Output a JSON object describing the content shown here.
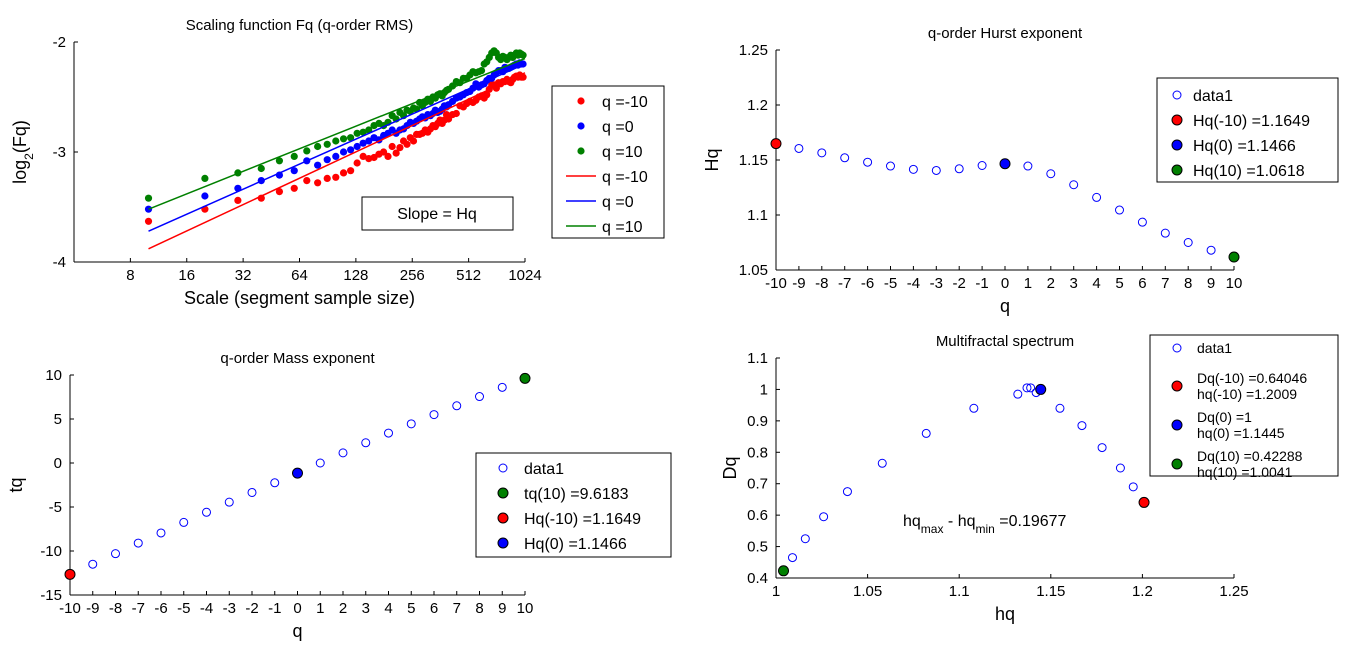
{
  "chart_data": [
    {
      "id": "scaling",
      "type": "scatter",
      "title": "Scaling function Fq (q-order RMS)",
      "xlabel": "Scale (segment sample size)",
      "ylabel": "log2(Fq)",
      "xscale": "log2",
      "xlim": [
        4,
        1024
      ],
      "ylim": [
        -4,
        -2
      ],
      "xticks": [
        8,
        16,
        32,
        64,
        128,
        256,
        512,
        1024
      ],
      "yticks": [
        -4,
        -3,
        -2
      ],
      "legend_position": "east-outside",
      "annotation": "Slope = Hq",
      "colors": {
        "q_neg10": "#ff0000",
        "q_0": "#0000ff",
        "q_10": "#008000"
      },
      "series": [
        {
          "name": "q =-10",
          "kind": "markers",
          "color": "#ff0000",
          "x": [
            10,
            20,
            30,
            40,
            50,
            60,
            70,
            80,
            90,
            100,
            110,
            120,
            130,
            140,
            150,
            160,
            170,
            180,
            190,
            200,
            210,
            220,
            230,
            240,
            250,
            260,
            270,
            280,
            290,
            300,
            310,
            320,
            330,
            340,
            350,
            360,
            370,
            380,
            390,
            400,
            420,
            440,
            460,
            480,
            500,
            520,
            540,
            560,
            580,
            600,
            620,
            640,
            660,
            680,
            700,
            720,
            740,
            760,
            780,
            800,
            820,
            840,
            860,
            880,
            900,
            920,
            940,
            960,
            980,
            1000
          ],
          "y": [
            -3.63,
            -3.52,
            -3.44,
            -3.42,
            -3.36,
            -3.33,
            -3.26,
            -3.28,
            -3.24,
            -3.23,
            -3.19,
            -3.17,
            -3.1,
            -3.04,
            -3.06,
            -3.05,
            -3.02,
            -3.0,
            -3.04,
            -2.95,
            -3.01,
            -2.96,
            -2.9,
            -2.93,
            -2.87,
            -2.9,
            -2.84,
            -2.84,
            -2.83,
            -2.8,
            -2.82,
            -2.79,
            -2.76,
            -2.77,
            -2.74,
            -2.71,
            -2.74,
            -2.71,
            -2.66,
            -2.7,
            -2.66,
            -2.65,
            -2.58,
            -2.59,
            -2.56,
            -2.54,
            -2.55,
            -2.53,
            -2.5,
            -2.49,
            -2.51,
            -2.48,
            -2.43,
            -2.39,
            -2.39,
            -2.42,
            -2.37,
            -2.38,
            -2.36,
            -2.36,
            -2.34,
            -2.36,
            -2.37,
            -2.34,
            -2.32,
            -2.31,
            -2.32,
            -2.3,
            -2.32,
            -2.32
          ]
        },
        {
          "name": "q =0",
          "kind": "markers",
          "color": "#0000ff",
          "x": [
            10,
            20,
            30,
            40,
            50,
            60,
            70,
            80,
            90,
            100,
            110,
            120,
            130,
            140,
            150,
            160,
            170,
            180,
            190,
            200,
            210,
            220,
            230,
            240,
            250,
            260,
            270,
            280,
            290,
            300,
            310,
            320,
            330,
            340,
            350,
            360,
            370,
            380,
            390,
            400,
            420,
            440,
            460,
            480,
            500,
            520,
            540,
            560,
            580,
            600,
            620,
            640,
            660,
            680,
            700,
            720,
            740,
            760,
            780,
            800,
            820,
            840,
            860,
            880,
            900,
            920,
            940,
            960,
            980,
            1000
          ],
          "y": [
            -3.52,
            -3.4,
            -3.33,
            -3.26,
            -3.21,
            -3.17,
            -3.08,
            -3.12,
            -3.07,
            -3.04,
            -3.0,
            -2.98,
            -2.95,
            -2.92,
            -2.9,
            -2.87,
            -2.89,
            -2.85,
            -2.83,
            -2.8,
            -2.83,
            -2.8,
            -2.79,
            -2.76,
            -2.73,
            -2.74,
            -2.72,
            -2.7,
            -2.68,
            -2.69,
            -2.66,
            -2.67,
            -2.65,
            -2.62,
            -2.64,
            -2.63,
            -2.61,
            -2.58,
            -2.59,
            -2.57,
            -2.54,
            -2.51,
            -2.5,
            -2.48,
            -2.46,
            -2.45,
            -2.42,
            -2.38,
            -2.41,
            -2.39,
            -2.38,
            -2.35,
            -2.33,
            -2.33,
            -2.3,
            -2.28,
            -2.26,
            -2.26,
            -2.27,
            -2.23,
            -2.24,
            -2.24,
            -2.23,
            -2.22,
            -2.21,
            -2.2,
            -2.21,
            -2.19,
            -2.2,
            -2.2
          ]
        },
        {
          "name": "q =10",
          "kind": "markers",
          "color": "#008000",
          "x": [
            10,
            20,
            30,
            40,
            50,
            60,
            70,
            80,
            90,
            100,
            110,
            120,
            130,
            140,
            150,
            160,
            170,
            180,
            190,
            200,
            210,
            220,
            230,
            240,
            250,
            260,
            270,
            280,
            290,
            300,
            310,
            320,
            330,
            340,
            350,
            360,
            370,
            380,
            390,
            400,
            420,
            440,
            460,
            480,
            500,
            520,
            540,
            560,
            580,
            600,
            620,
            640,
            660,
            680,
            700,
            720,
            740,
            760,
            780,
            800,
            820,
            840,
            860,
            880,
            900,
            920,
            940,
            960,
            980,
            1000
          ],
          "y": [
            -3.42,
            -3.24,
            -3.19,
            -3.15,
            -3.08,
            -3.04,
            -2.99,
            -2.95,
            -2.93,
            -2.9,
            -2.88,
            -2.87,
            -2.83,
            -2.82,
            -2.8,
            -2.76,
            -2.74,
            -2.76,
            -2.73,
            -2.67,
            -2.7,
            -2.64,
            -2.67,
            -2.62,
            -2.63,
            -2.6,
            -2.61,
            -2.55,
            -2.58,
            -2.55,
            -2.52,
            -2.54,
            -2.5,
            -2.51,
            -2.48,
            -2.47,
            -2.49,
            -2.46,
            -2.44,
            -2.43,
            -2.4,
            -2.36,
            -2.37,
            -2.33,
            -2.33,
            -2.3,
            -2.27,
            -2.28,
            -2.27,
            -2.26,
            -2.2,
            -2.18,
            -2.14,
            -2.1,
            -2.08,
            -2.1,
            -2.14,
            -2.16,
            -2.13,
            -2.14,
            -2.16,
            -2.14,
            -2.12,
            -2.14,
            -2.12,
            -2.1,
            -2.12,
            -2.1,
            -2.11,
            -2.12
          ]
        },
        {
          "name": "q =-10",
          "kind": "line",
          "color": "#ff0000",
          "x": [
            10,
            1024
          ],
          "y": [
            -3.88,
            -2.28
          ]
        },
        {
          "name": "q =0",
          "kind": "line",
          "color": "#0000ff",
          "x": [
            10,
            1024
          ],
          "y": [
            -3.72,
            -2.2
          ]
        },
        {
          "name": "q =10",
          "kind": "line",
          "color": "#008000",
          "x": [
            10,
            1024
          ],
          "y": [
            -3.52,
            -2.15
          ]
        }
      ]
    },
    {
      "id": "hurst",
      "type": "scatter",
      "title": "q-order Hurst exponent",
      "xlabel": "q",
      "ylabel": "Hq",
      "xlim": [
        -10,
        10
      ],
      "ylim": [
        1.05,
        1.25
      ],
      "xticks": [
        -10,
        -9,
        -8,
        -7,
        -6,
        -5,
        -4,
        -3,
        -2,
        -1,
        0,
        1,
        2,
        3,
        4,
        5,
        6,
        7,
        8,
        9,
        10
      ],
      "yticks": [
        1.05,
        1.1,
        1.15,
        1.2,
        1.25
      ],
      "legend_position": "northeast",
      "series": [
        {
          "name": "data1",
          "kind": "open",
          "color": "#0000ff",
          "x": [
            -10,
            -9,
            -8,
            -7,
            -6,
            -5,
            -4,
            -3,
            -2,
            -1,
            0,
            1,
            2,
            3,
            4,
            5,
            6,
            7,
            8,
            9,
            10
          ],
          "y": [
            1.1649,
            1.1605,
            1.1565,
            1.152,
            1.148,
            1.1445,
            1.1415,
            1.1405,
            1.142,
            1.145,
            1.1466,
            1.1445,
            1.1375,
            1.1275,
            1.116,
            1.1045,
            1.0935,
            1.0835,
            1.075,
            1.068,
            1.0618
          ]
        },
        {
          "name": "Hq(-10) =1.1649",
          "kind": "filled",
          "color": "#ff0000",
          "x": [
            -10
          ],
          "y": [
            1.1649
          ]
        },
        {
          "name": "Hq(0) =1.1466",
          "kind": "filled",
          "color": "#0000ff",
          "x": [
            0
          ],
          "y": [
            1.1466
          ]
        },
        {
          "name": "Hq(10) =1.0618",
          "kind": "filled",
          "color": "#008000",
          "x": [
            10
          ],
          "y": [
            1.0618
          ]
        }
      ]
    },
    {
      "id": "mass",
      "type": "scatter",
      "title": "q-order Mass exponent",
      "xlabel": "q",
      "ylabel": "tq",
      "xlim": [
        -10,
        10
      ],
      "ylim": [
        -15,
        10
      ],
      "xticks": [
        -10,
        -9,
        -8,
        -7,
        -6,
        -5,
        -4,
        -3,
        -2,
        -1,
        0,
        1,
        2,
        3,
        4,
        5,
        6,
        7,
        8,
        9,
        10
      ],
      "yticks": [
        -15,
        -10,
        -5,
        0,
        5,
        10
      ],
      "legend_position": "southeast",
      "series": [
        {
          "name": "data1",
          "kind": "open",
          "color": "#0000ff",
          "x": [
            -10,
            -9,
            -8,
            -7,
            -6,
            -5,
            -4,
            -3,
            -2,
            -1,
            0,
            1,
            2,
            3,
            4,
            5,
            6,
            7,
            8,
            9,
            10
          ],
          "y": [
            -12.65,
            -11.5,
            -10.3,
            -9.1,
            -7.95,
            -6.75,
            -5.6,
            -4.45,
            -3.35,
            -2.25,
            -1.15,
            0.0,
            1.15,
            2.3,
            3.4,
            4.45,
            5.5,
            6.5,
            7.55,
            8.6,
            9.6183
          ]
        },
        {
          "name": "tq(10) =9.6183",
          "kind": "filled",
          "color": "#008000",
          "x": [
            10
          ],
          "y": [
            9.6183
          ]
        },
        {
          "name": "Hq(-10) =1.1649",
          "kind": "filled",
          "color": "#ff0000",
          "x": [
            -10
          ],
          "y": [
            -12.65
          ]
        },
        {
          "name": "Hq(0) =1.1466",
          "kind": "filled",
          "color": "#0000ff",
          "x": [
            0
          ],
          "y": [
            -1.15
          ]
        }
      ]
    },
    {
      "id": "spectrum",
      "type": "scatter",
      "title": "Multifractal spectrum",
      "xlabel": "hq",
      "ylabel": "Dq",
      "xlim": [
        1,
        1.25
      ],
      "ylim": [
        0.4,
        1.1
      ],
      "xticks": [
        1,
        1.05,
        1.1,
        1.15,
        1.2,
        1.25
      ],
      "yticks": [
        0.4,
        0.5,
        0.6,
        0.7,
        0.8,
        0.9,
        1,
        1.1
      ],
      "legend_position": "northeast",
      "annotation": "hq_max - hq_min =0.19677",
      "series": [
        {
          "name": "data1",
          "kind": "open",
          "color": "#0000ff",
          "x": [
            1.0041,
            1.009,
            1.016,
            1.026,
            1.039,
            1.058,
            1.082,
            1.108,
            1.132,
            1.137,
            1.139,
            1.142,
            1.1445,
            1.155,
            1.167,
            1.178,
            1.188,
            1.195,
            1.2009
          ],
          "y": [
            0.42288,
            0.465,
            0.525,
            0.595,
            0.675,
            0.765,
            0.86,
            0.94,
            0.985,
            1.005,
            1.005,
            0.99,
            1.0,
            0.94,
            0.885,
            0.815,
            0.75,
            0.69,
            0.64046
          ]
        },
        {
          "name": "Dq(-10) =0.64046\nhq(-10) =1.2009",
          "kind": "filled",
          "color": "#ff0000",
          "x": [
            1.2009
          ],
          "y": [
            0.64046
          ]
        },
        {
          "name": "Dq(0) =1\nhq(0) =1.1445",
          "kind": "filled",
          "color": "#0000ff",
          "x": [
            1.1445
          ],
          "y": [
            1.0
          ]
        },
        {
          "name": "Dq(10) =0.42288\nhq(10) =1.0041",
          "kind": "filled",
          "color": "#008000",
          "x": [
            1.0041
          ],
          "y": [
            0.42288
          ]
        }
      ]
    }
  ]
}
